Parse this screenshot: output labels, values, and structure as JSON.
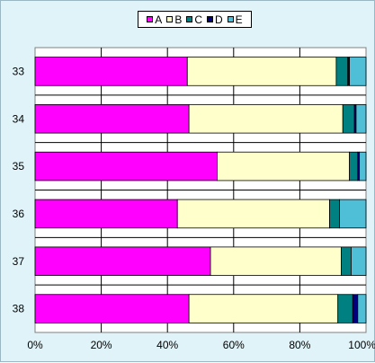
{
  "chart_data": {
    "type": "bar",
    "orientation": "horizontal",
    "stacked": "percent",
    "categories": [
      "33",
      "34",
      "35",
      "36",
      "37",
      "38"
    ],
    "series": [
      {
        "name": "A",
        "color": "#ff00ff",
        "values": [
          46,
          46.5,
          55,
          43,
          53,
          46.5
        ]
      },
      {
        "name": "B",
        "color": "#ffffcc",
        "values": [
          45,
          46.5,
          40,
          46,
          39.5,
          45
        ]
      },
      {
        "name": "C",
        "color": "#008080",
        "values": [
          3.5,
          3.5,
          2.5,
          3,
          3,
          4.5
        ]
      },
      {
        "name": "D",
        "color": "#000080",
        "values": [
          0.5,
          0.5,
          0.5,
          0,
          0,
          1.5
        ]
      },
      {
        "name": "E",
        "color": "#4fbfd8",
        "values": [
          5,
          3,
          2,
          8,
          4.5,
          2.5
        ]
      }
    ],
    "xticks": [
      "0%",
      "20%",
      "40%",
      "60%",
      "80%",
      "100%"
    ],
    "xlim": [
      0,
      100
    ],
    "grid": true,
    "legend": "top-center"
  }
}
